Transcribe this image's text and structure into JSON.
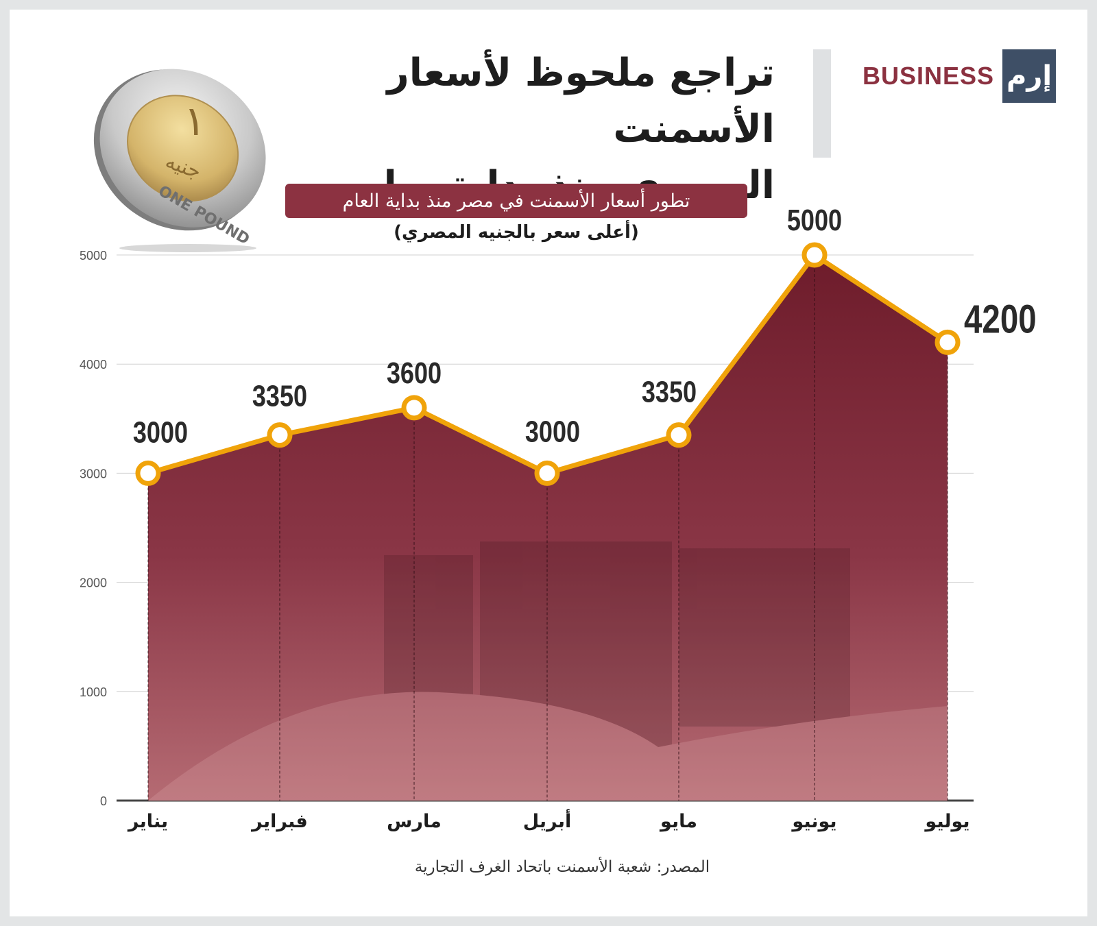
{
  "header": {
    "title_line1": "تراجع ملحوظ لأسعار الأسمنت",
    "title_line2": "المصري منذ بداية يوليو",
    "brand_text": "BUSINESS",
    "brand_logo_text": "إرم"
  },
  "colors": {
    "accent": "#8c3241",
    "area_fill": "#7a2535",
    "line": "#f0a30a",
    "brand_box": "#3e4f66"
  },
  "coin": {
    "icon": "egyptian-one-pound-coin",
    "arabic_numeral": "١",
    "arabic_word": "جنيه",
    "english_text": "ONE POUND"
  },
  "subtitle": "تطور أسعار الأسمنت في مصر منذ بداية العام",
  "subnote": "(أعلى سعر بالجنيه المصري)",
  "source": "المصدر: شعبة الأسمنت باتحاد الغرف التجارية",
  "chart_data": {
    "type": "area",
    "categories": [
      "يناير",
      "فبراير",
      "مارس",
      "أبريل",
      "مايو",
      "يونيو",
      "يوليو"
    ],
    "values": [
      3000,
      3350,
      3600,
      3000,
      3350,
      5000,
      4200
    ],
    "data_labels": [
      "3000",
      "3350",
      "3600",
      "3000",
      "3350",
      "5000",
      "4200"
    ],
    "yticks": [
      "0",
      "1000",
      "2000",
      "3000",
      "4000",
      "5000"
    ],
    "ylim": [
      0,
      5000
    ],
    "grid": true,
    "background_image": "cement-factory-photo"
  }
}
